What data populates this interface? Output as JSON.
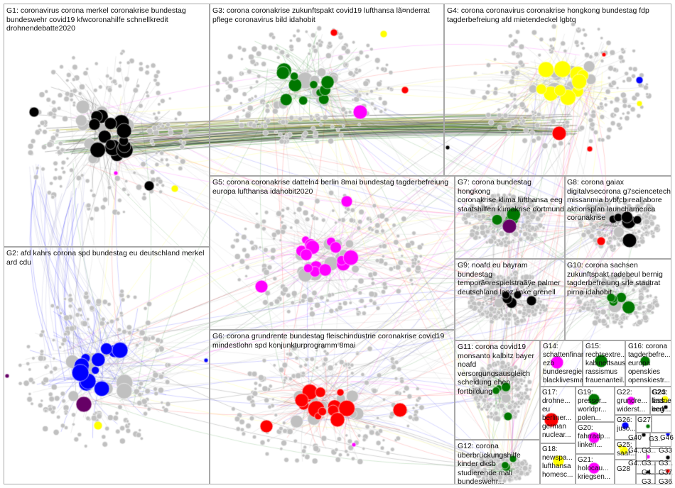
{
  "groups": [
    {
      "id": "G1",
      "label": "G1: coronavirus corona merkel coronakrise bundestag\nbundeswehr covid19 kfwcoronahilfe schnellkredit\ndrohnendebatte2020",
      "color": "#000000"
    },
    {
      "id": "G2",
      "label": "G2: afd kahrs corona spd bundestag eu deutschland merkel\nard cdu",
      "color": "#0000ff"
    },
    {
      "id": "G3",
      "label": "G3: corona coronakrise zukunftspakt covid19 lufthansa lã¤nderrat\npflege coronavirus bild idahobit",
      "color": "#007700"
    },
    {
      "id": "G4",
      "label": "G4: corona coronavirus coronakrise hongkong bundestag fdp\ntagderbefreiung afd mietendeckel lgbtq",
      "color": "#ffff00"
    },
    {
      "id": "G5",
      "label": "G5: corona coronakrise datteln4 berlin 8mai bundestag tagderbefreiung\neuropa lufthansa idahobit2020",
      "color": "#ff00ff"
    },
    {
      "id": "G6",
      "label": "G6: corona grundrente bundestag fleischindustrie coronakrise covid19\nmindestlohn spd konjunkturprogramm 8mai",
      "color": "#ff0000"
    },
    {
      "id": "G7",
      "label": "G7: corona bundestag hongkong\ncoronakrise klima lufthansa eeg\nstaatshilfen klimakrise dortmund",
      "color": "#007700"
    },
    {
      "id": "G8",
      "label": "G8: corona gaiax\ndigitalvsecorona g7sciencetech\nmissanmia bvbfcb reallabore\naktionsplan launchamerica\ncoronakrise",
      "color": "#000000"
    },
    {
      "id": "G9",
      "label": "G9: noafd eu bayram bundestag\ntemporã¤respielstraãÿe palmer\ndeutschland lanz linke grenell",
      "color": "#000000"
    },
    {
      "id": "G10",
      "label": "G10: corona sachsen\nzukunftspakt radebeul bernig\ntagderbefreiung srle stadtrat\npirna idahobit",
      "color": "#007700"
    },
    {
      "id": "G11",
      "label": "G11: corona covid19\nmonsanto kalbitz bayer\nnoafd\nversorgungsausgleich\nscheidung ehen\nfortbildung",
      "color": "#007700"
    },
    {
      "id": "G12",
      "label": "G12: corona\nüberbrückungshilfe\nkinder dksb\nstudierende mali\nbundeswehr...",
      "color": "#007700"
    },
    {
      "id": "G14",
      "label": "G14:\nschattenfinanz...\nezb\nbundesregieru...\nblacklivesmatt...",
      "color": "#ff00ff"
    },
    {
      "id": "G15",
      "label": "G15:\nrechtsextre...\nkabinettsaus...\nrassismus\nfrauenanteil...",
      "color": "#007700"
    },
    {
      "id": "G16",
      "label": "G16: corona\ntagderbefre...\neuropa\nopenskies\nopenskiestr...",
      "color": "#007700"
    },
    {
      "id": "G17",
      "label": "G17:\ndrohne...\neu\nberliner...\ngerman\nnuclear...",
      "color": "#ff0000"
    },
    {
      "id": "G18",
      "label": "G18:\nnewspa...\nlufthansa\nhomesc...",
      "color": "#ffff00"
    },
    {
      "id": "G19",
      "label": "G19:\npresser...\nworldpr...\npolen...",
      "color": "#007700"
    },
    {
      "id": "G20",
      "label": "G20:\nfahrradp...\nlinken...",
      "color": "#ff00ff"
    },
    {
      "id": "G21",
      "label": "G21:\nholocau...\nkriegsen...",
      "color": "#ff00ff"
    },
    {
      "id": "G22",
      "label": "G22:\ngrundre...\nwiderst...",
      "color": "#ff00ff"
    },
    {
      "id": "G23",
      "label": "G23:\nlindner\neeg",
      "color": "#ffff00"
    },
    {
      "id": "G24",
      "label": "G24:\nlass...\nberli...",
      "color": "#000000"
    },
    {
      "id": "G25",
      "label": "G25:\nsaar...",
      "color": "#ffff00"
    },
    {
      "id": "G26",
      "label": "G26:\njuso...",
      "color": "#0000ff"
    },
    {
      "id": "G27",
      "label": "G27:...",
      "color": "#007700"
    },
    {
      "id": "G28",
      "label": "G28",
      "color": "#000000"
    },
    {
      "id": "G3x",
      "label": "G3...",
      "color": "#000000"
    },
    {
      "id": "G33",
      "label": "G33",
      "color": "#000000"
    },
    {
      "id": "G36",
      "label": "G36...",
      "color": "#ffff00"
    },
    {
      "id": "G37",
      "label": "G37...",
      "color": "#ff0000"
    },
    {
      "id": "G38",
      "label": "G3...",
      "color": "#000000"
    },
    {
      "id": "G40",
      "label": "G40",
      "color": "#007700"
    },
    {
      "id": "G4x",
      "label": "G4...",
      "color": "#ff00ff"
    },
    {
      "id": "G46",
      "label": "G46",
      "color": "#0000ff"
    },
    {
      "id": "G3y",
      "label": "G3...",
      "color": "#000000"
    },
    {
      "id": "G3z",
      "label": "G3...",
      "color": "#ffff00"
    },
    {
      "id": "G4y",
      "label": "G4...",
      "color": "#000000"
    },
    {
      "id": "G4z",
      "label": "G4...",
      "color": "#000000"
    },
    {
      "id": "G3w",
      "label": "G3...",
      "color": "#0000ff"
    }
  ],
  "colors": {
    "node_default": "#c0c0c0",
    "edge_default": "#a0a0a0",
    "panel_border": "#a8a8a8",
    "background": "#ffffff"
  }
}
